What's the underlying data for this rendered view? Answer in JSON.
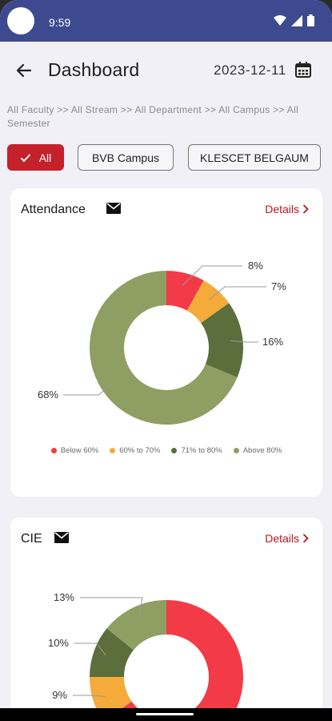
{
  "status_bar": {
    "time": "9:59"
  },
  "header": {
    "title": "Dashboard",
    "date": "2023-12-11"
  },
  "breadcrumb": "All Faculty >> All Stream >> All Department >> All Campus >> All Semester",
  "filters": [
    {
      "label": "All",
      "active": true
    },
    {
      "label": "BVB Campus",
      "active": false
    },
    {
      "label": "KLESCET BELGAUM",
      "active": false
    }
  ],
  "attendance": {
    "title": "Attendance",
    "details_label": "Details",
    "legend": [
      "Below 60%",
      "60% to 70%",
      "71% to 80%",
      "Above 80%"
    ]
  },
  "cie": {
    "title": "CIE",
    "details_label": "Details"
  },
  "colors": {
    "red": "#f23b47",
    "orange": "#f4ab3a",
    "dark_green": "#5b6e3c",
    "olive": "#8f9e62",
    "brand": "#3d4a8f",
    "accent": "#b9151f"
  },
  "chart_data": [
    {
      "type": "pie",
      "title": "Attendance",
      "categories": [
        "Below 60%",
        "60% to 70%",
        "71% to 80%",
        "Above 80%"
      ],
      "values": [
        8,
        7,
        16,
        68
      ],
      "labels": [
        "8%",
        "7%",
        "16%",
        "68%"
      ],
      "colors": [
        "#f23b47",
        "#f4ab3a",
        "#5b6e3c",
        "#8f9e62"
      ]
    },
    {
      "type": "pie",
      "title": "CIE",
      "categories": [
        "Below 60%",
        "60% to 70%",
        "71% to 80%",
        "Above 80%"
      ],
      "values": [
        60,
        9,
        10,
        13
      ],
      "labels": [
        "",
        "9%",
        "10%",
        "13%"
      ],
      "colors": [
        "#f23b47",
        "#f4ab3a",
        "#5b6e3c",
        "#8f9e62"
      ]
    }
  ]
}
